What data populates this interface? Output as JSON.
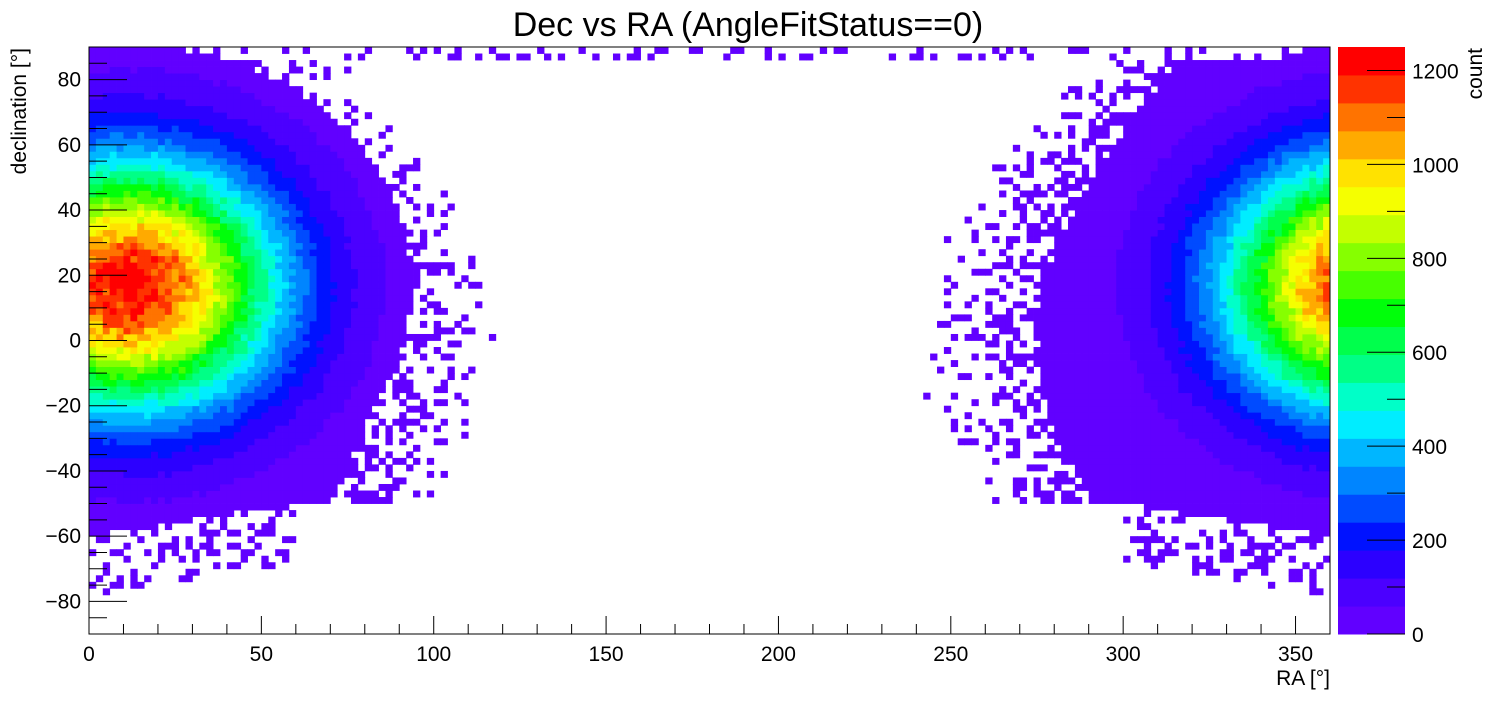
{
  "chart_data": {
    "type": "heatmap",
    "title": "Dec vs RA (AngleFitStatus==0)",
    "xlabel": "RA [°]",
    "ylabel": "declination [°]",
    "zlabel": "count",
    "xlim": [
      0,
      360
    ],
    "ylim": [
      -90,
      90
    ],
    "zlim": [
      0,
      1250
    ],
    "xticks": [
      "0",
      "50",
      "100",
      "150",
      "200",
      "250",
      "300",
      "350"
    ],
    "yticks": [
      "−80",
      "−60",
      "−40",
      "−20",
      "0",
      "20",
      "40",
      "60",
      "80"
    ],
    "zticks": [
      "0",
      "200",
      "400",
      "600",
      "800",
      "1000",
      "1200"
    ],
    "grid": false,
    "palette": [
      "#6100ff",
      "#4b00ff",
      "#2c00ff",
      "#0012ff",
      "#004bff",
      "#0085ff",
      "#00b6ff",
      "#00edff",
      "#00ffc8",
      "#00ff86",
      "#00ff4c",
      "#00ff0a",
      "#47ff00",
      "#86ff00",
      "#c3ff00",
      "#f5ff00",
      "#ffe200",
      "#ffaa00",
      "#ff7300",
      "#ff3300",
      "#ff0000"
    ],
    "hotspot": {
      "ra": 12,
      "dec": 17,
      "peak": 1230
    },
    "description_of_distribution": "Events concentrated near RA 0/360 wrapping, peak around declination 17"
  }
}
